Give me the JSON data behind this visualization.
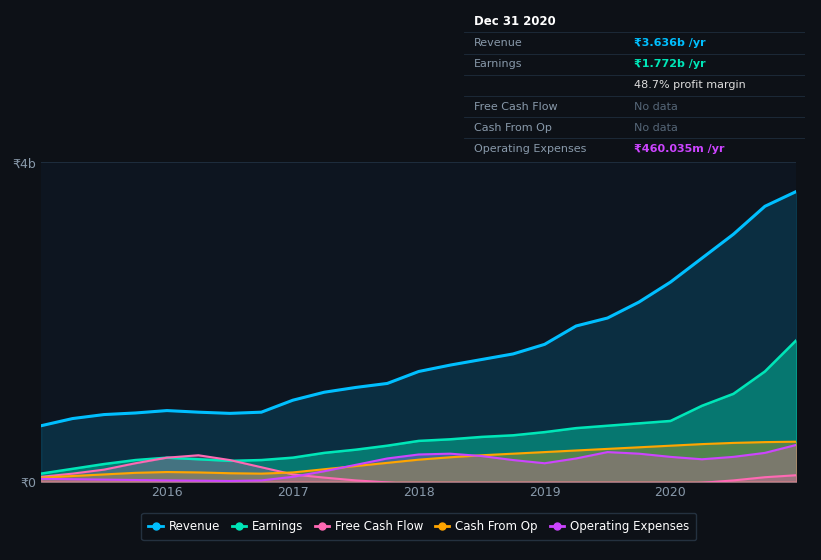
{
  "background_color": "#0d1117",
  "plot_bg_color": "#0d1520",
  "grid_color": "#1e2d3d",
  "ylim": [
    0,
    4000000000
  ],
  "yticks": [
    0,
    4000000000
  ],
  "ytick_labels": [
    "₹0",
    "₹4b"
  ],
  "xlabel_color": "#8899aa",
  "ylabel_color": "#8899aa",
  "x_years": [
    2015.0,
    2015.25,
    2015.5,
    2015.75,
    2016.0,
    2016.25,
    2016.5,
    2016.75,
    2017.0,
    2017.25,
    2017.5,
    2017.75,
    2018.0,
    2018.25,
    2018.5,
    2018.75,
    2019.0,
    2019.25,
    2019.5,
    2019.75,
    2020.0,
    2020.25,
    2020.5,
    2020.75,
    2021.0
  ],
  "revenue": [
    700000000,
    790000000,
    840000000,
    860000000,
    890000000,
    870000000,
    855000000,
    870000000,
    1020000000,
    1120000000,
    1180000000,
    1230000000,
    1380000000,
    1460000000,
    1530000000,
    1600000000,
    1720000000,
    1950000000,
    2050000000,
    2250000000,
    2500000000,
    2800000000,
    3100000000,
    3450000000,
    3636000000
  ],
  "earnings": [
    100000000,
    160000000,
    220000000,
    270000000,
    300000000,
    280000000,
    260000000,
    270000000,
    300000000,
    360000000,
    400000000,
    450000000,
    510000000,
    530000000,
    560000000,
    580000000,
    620000000,
    670000000,
    700000000,
    730000000,
    760000000,
    950000000,
    1100000000,
    1380000000,
    1772000000
  ],
  "free_cash_flow": [
    60000000,
    100000000,
    150000000,
    230000000,
    300000000,
    330000000,
    270000000,
    180000000,
    90000000,
    50000000,
    15000000,
    -10000000,
    -40000000,
    -70000000,
    -100000000,
    -75000000,
    -95000000,
    -115000000,
    -85000000,
    -55000000,
    -35000000,
    -15000000,
    15000000,
    55000000,
    80000000
  ],
  "cash_from_op": [
    50000000,
    70000000,
    90000000,
    110000000,
    120000000,
    115000000,
    105000000,
    100000000,
    115000000,
    155000000,
    195000000,
    235000000,
    275000000,
    305000000,
    330000000,
    350000000,
    370000000,
    390000000,
    410000000,
    430000000,
    450000000,
    470000000,
    485000000,
    495000000,
    500000000
  ],
  "op_expenses": [
    35000000,
    30000000,
    25000000,
    20000000,
    15000000,
    12000000,
    8000000,
    15000000,
    60000000,
    130000000,
    210000000,
    290000000,
    340000000,
    350000000,
    320000000,
    270000000,
    230000000,
    290000000,
    370000000,
    350000000,
    310000000,
    280000000,
    310000000,
    360000000,
    460035000
  ],
  "revenue_color": "#00bfff",
  "earnings_color": "#00e6b8",
  "fcf_color": "#ff69b4",
  "cashop_color": "#ffa500",
  "opex_color": "#cc44ff",
  "legend_items": [
    "Revenue",
    "Earnings",
    "Free Cash Flow",
    "Cash From Op",
    "Operating Expenses"
  ],
  "legend_colors": [
    "#00bfff",
    "#00e6b8",
    "#ff69b4",
    "#ffa500",
    "#cc44ff"
  ],
  "xtick_positions": [
    2016,
    2017,
    2018,
    2019,
    2020
  ],
  "xtick_labels": [
    "2016",
    "2017",
    "2018",
    "2019",
    "2020"
  ],
  "tooltip_title": "Dec 31 2020",
  "tooltip_revenue_label": "Revenue",
  "tooltip_revenue_val": "₹3.636b /yr",
  "tooltip_earnings_label": "Earnings",
  "tooltip_earnings_val": "₹1.772b /yr",
  "tooltip_margin": "48.7% profit margin",
  "tooltip_fcf_label": "Free Cash Flow",
  "tooltip_fcf_val": "No data",
  "tooltip_cashop_label": "Cash From Op",
  "tooltip_cashop_val": "No data",
  "tooltip_opex_label": "Operating Expenses",
  "tooltip_opex_val": "₹460.035m /yr",
  "label_muted": "#7a8a9a",
  "label_nodata": "#6a7a8a"
}
